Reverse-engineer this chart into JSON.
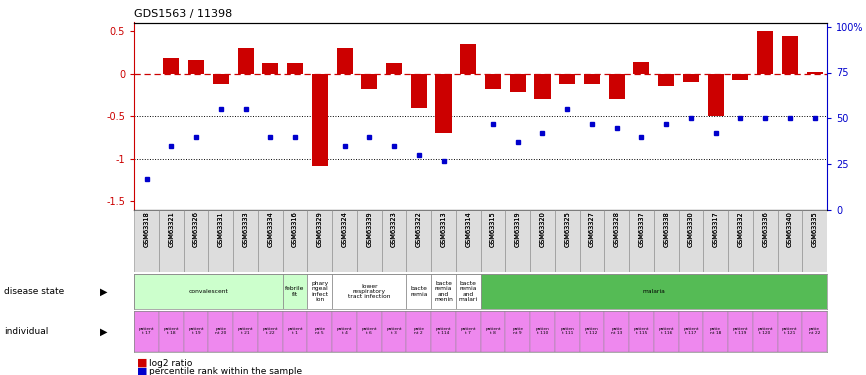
{
  "title": "GDS1563 / 11398",
  "sample_ids": [
    "GSM63318",
    "GSM63321",
    "GSM63326",
    "GSM63331",
    "GSM63333",
    "GSM63334",
    "GSM63316",
    "GSM63329",
    "GSM63324",
    "GSM63339",
    "GSM63323",
    "GSM63322",
    "GSM63313",
    "GSM63314",
    "GSM63315",
    "GSM63319",
    "GSM63320",
    "GSM63325",
    "GSM63327",
    "GSM63328",
    "GSM63337",
    "GSM63338",
    "GSM63330",
    "GSM63317",
    "GSM63332",
    "GSM63336",
    "GSM63340",
    "GSM63335"
  ],
  "log2_ratio": [
    0.0,
    0.18,
    0.16,
    -0.12,
    0.3,
    0.12,
    0.12,
    -1.08,
    0.3,
    -0.18,
    0.12,
    -0.4,
    -0.7,
    0.35,
    -0.18,
    -0.22,
    -0.3,
    -0.12,
    -0.12,
    -0.3,
    0.14,
    -0.14,
    -0.1,
    -0.5,
    -0.08,
    0.5,
    0.44,
    0.02
  ],
  "percentile_rank": [
    17,
    35,
    40,
    55,
    55,
    40,
    40,
    null,
    35,
    40,
    35,
    30,
    27,
    null,
    47,
    37,
    42,
    55,
    47,
    45,
    40,
    47,
    50,
    42,
    50,
    50,
    50,
    50
  ],
  "disease_groups": [
    {
      "label": "convalescent",
      "start": 0,
      "end": 6,
      "color": "#ccffcc"
    },
    {
      "label": "febrile\nfit",
      "start": 6,
      "end": 7,
      "color": "#ccffcc"
    },
    {
      "label": "phary\nngeal\ninfect\nion",
      "start": 7,
      "end": 8,
      "color": "#ffffff"
    },
    {
      "label": "lower\nrespiratory\ntract infection",
      "start": 8,
      "end": 11,
      "color": "#ffffff"
    },
    {
      "label": "bacte\nremia",
      "start": 11,
      "end": 12,
      "color": "#ffffff"
    },
    {
      "label": "bacte\nremia\nand\nmenin",
      "start": 12,
      "end": 13,
      "color": "#ffffff"
    },
    {
      "label": "bacte\nremia\nand\nmalari",
      "start": 13,
      "end": 14,
      "color": "#ffffff"
    },
    {
      "label": "malaria",
      "start": 14,
      "end": 28,
      "color": "#55bb55"
    }
  ],
  "individual_labels": [
    "patient\nt 17",
    "patient\nt 18",
    "patient\nt 19",
    "patie\nnt 20",
    "patient\nt 21",
    "patient\nt 22",
    "patient\nt 1",
    "patie\nnt 5",
    "patient\nt 4",
    "patient\nt 6",
    "patient\nt 3",
    "patie\nnt 2",
    "patient\nt 114",
    "patient\nt 7",
    "patient\nt 8",
    "patie\nnt 9",
    "patien\nt 110",
    "patien\nt 111",
    "patien\nt 112",
    "patie\nnt 13",
    "patient\nt 115",
    "patient\nt 116",
    "patient\nt 117",
    "patie\nnt 18",
    "patient\nt 119",
    "patient\nt 120",
    "patient\nt 121",
    "patie\nnt 22"
  ],
  "bar_color": "#cc0000",
  "dot_color": "#0000cc",
  "dashed_line_color": "#cc0000",
  "ylim_left": [
    -1.6,
    0.6
  ],
  "yticks_left": [
    -1.5,
    -1.0,
    -0.5,
    0,
    0.5
  ],
  "ytick_labels_left": [
    "-1.5",
    "-1",
    "-0.5",
    "0",
    "0.5"
  ],
  "yticks_right_vals": [
    0,
    25,
    50,
    75,
    100
  ],
  "ytick_labels_right": [
    "0",
    "25",
    "50",
    "75",
    "100%"
  ],
  "ylabel_left_color": "#cc0000",
  "ylabel_right_color": "#0000cc",
  "individual_color": "#ee88ee",
  "bg_color": "#ffffff"
}
